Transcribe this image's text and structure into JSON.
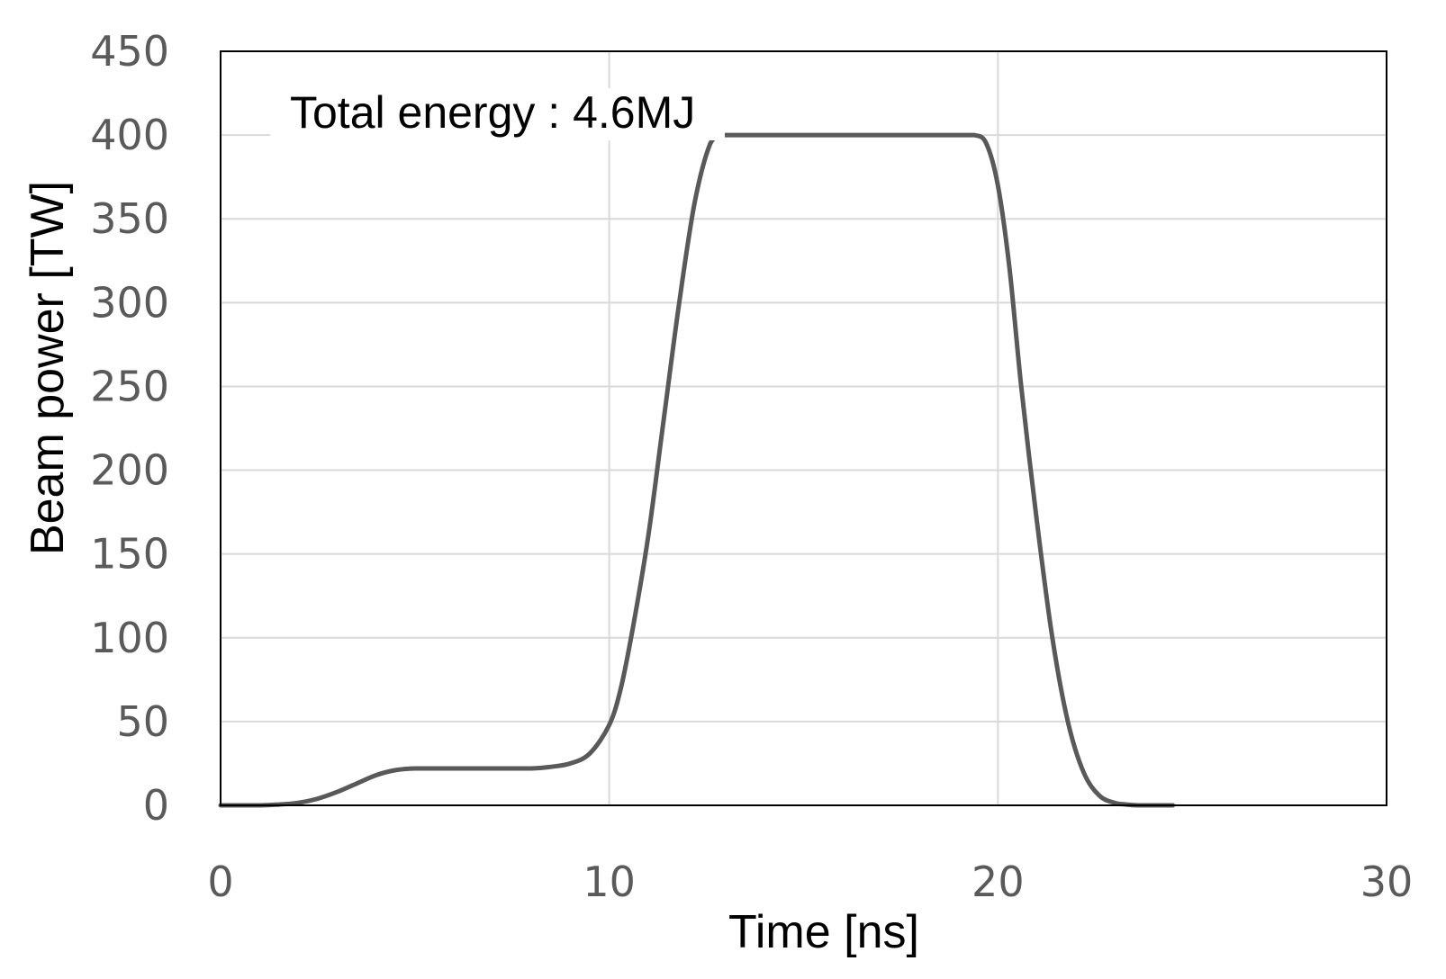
{
  "chart_data": {
    "type": "line",
    "xlabel": "Time [ns]",
    "ylabel": "Beam power [TW]",
    "xlim": [
      0,
      30
    ],
    "ylim": [
      0,
      450
    ],
    "xticks": [
      0,
      10,
      20,
      30
    ],
    "yticks": [
      0,
      50,
      100,
      150,
      200,
      250,
      300,
      350,
      400,
      450
    ],
    "grid": true,
    "annotation": "Total energy : 4.6MJ",
    "line_color": "#595959",
    "grid_color": "#d9d9d9",
    "series": [
      {
        "x": [
          0,
          1,
          1.5,
          2,
          2.5,
          3,
          3.5,
          4,
          4.5,
          5,
          6,
          7,
          8,
          8.5,
          9,
          9.5,
          10,
          10.3,
          10.6,
          11,
          11.4,
          11.8,
          12.2,
          12.6,
          12.9,
          13.2,
          14,
          16,
          18,
          19,
          19.4,
          19.7,
          20,
          20.3,
          20.6,
          21,
          21.4,
          21.8,
          22.2,
          22.6,
          23,
          23.3,
          23.6,
          24,
          24.5
        ],
        "y": [
          0,
          0,
          0.5,
          1.5,
          4,
          8,
          13,
          18,
          21,
          22,
          22,
          22,
          22,
          23,
          25,
          31,
          48,
          70,
          105,
          160,
          230,
          300,
          360,
          395,
          400,
          400,
          400,
          400,
          400,
          400,
          400,
          395,
          370,
          320,
          250,
          170,
          100,
          50,
          20,
          6,
          1.5,
          0.5,
          0,
          0,
          0
        ]
      }
    ]
  }
}
